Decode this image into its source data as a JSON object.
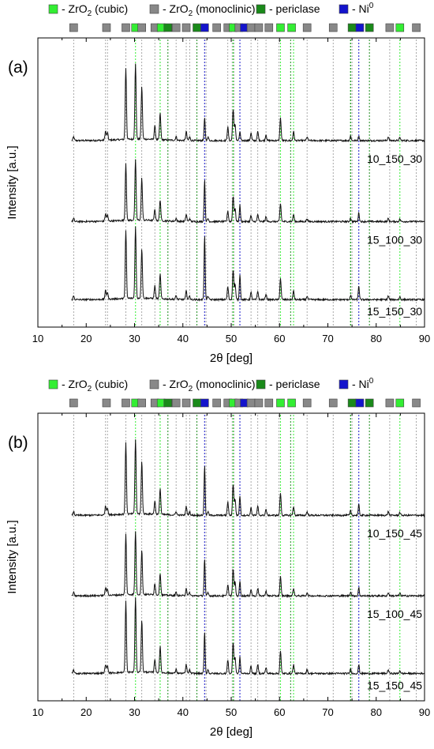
{
  "chart_data": [
    {
      "type": "line",
      "panel_label": "(a)",
      "legend": [
        {
          "text": "- ZrO",
          "sub": "2",
          "after": " (cubic)",
          "color": "#33ee33"
        },
        {
          "text": "- ZrO",
          "sub": "2",
          "after": " (monoclinic)",
          "color": "#888888"
        },
        {
          "text": "- periclase",
          "sub": "",
          "after": "",
          "color": "#1a8a1a"
        },
        {
          "text": "- Ni",
          "sup": "0",
          "after": "",
          "color": "#1414cc"
        }
      ],
      "xlabel": "2θ [deg]",
      "ylabel": "Intensity [a.u.]",
      "xlim": [
        10,
        90
      ],
      "xticks": [
        10,
        20,
        30,
        40,
        50,
        60,
        70,
        80,
        90
      ],
      "series": [
        {
          "name": "10_150_30",
          "peak_scale": 1.0,
          "ni_scale": 0.55
        },
        {
          "name": "15_100_30",
          "peak_scale": 0.8,
          "ni_scale": 1.0
        },
        {
          "name": "15_150_30",
          "peak_scale": 0.95,
          "ni_scale": 1.55
        }
      ]
    },
    {
      "type": "line",
      "panel_label": "(b)",
      "legend": [
        {
          "text": "- ZrO",
          "sub": "2",
          "after": " (cubic)",
          "color": "#33ee33"
        },
        {
          "text": "- ZrO",
          "sub": "2",
          "after": " (monoclinic)",
          "color": "#888888"
        },
        {
          "text": "- periclase",
          "sub": "",
          "after": "",
          "color": "#1a8a1a"
        },
        {
          "text": "- Ni",
          "sup": "0",
          "after": "",
          "color": "#1414cc"
        }
      ],
      "xlabel": "2θ [deg]",
      "ylabel": "Intensity [a.u.]",
      "xlim": [
        10,
        90
      ],
      "xticks": [
        10,
        20,
        30,
        40,
        50,
        60,
        70,
        80,
        90
      ],
      "series": [
        {
          "name": "10_150_45",
          "peak_scale": 1.0,
          "ni_scale": 1.2
        },
        {
          "name": "15_100_45",
          "peak_scale": 0.85,
          "ni_scale": 0.9
        },
        {
          "name": "15_150_45",
          "peak_scale": 1.0,
          "ni_scale": 1.0
        }
      ]
    }
  ],
  "reference_lines": {
    "monoclinic": [
      17.4,
      24.0,
      24.4,
      28.2,
      31.5,
      34.2,
      35.3,
      38.6,
      40.7,
      41.4,
      44.8,
      49.3,
      50.2,
      50.6,
      54.1,
      55.5,
      57.2,
      59.9,
      65.7,
      71.1,
      75.0,
      82.8,
      88.3
    ],
    "cubic": [
      30.2,
      35.3,
      50.4,
      60.2,
      62.9,
      74.7,
      84.9
    ],
    "periclase": [
      36.9,
      42.9,
      62.3,
      74.7,
      78.6
    ],
    "ni": [
      44.5,
      51.8,
      76.4
    ]
  },
  "marker_boxes": [
    {
      "x": 17.4,
      "phase": "monoclinic"
    },
    {
      "x": 24.2,
      "phase": "monoclinic"
    },
    {
      "x": 28.2,
      "phase": "monoclinic"
    },
    {
      "x": 30.2,
      "phase": "cubic"
    },
    {
      "x": 31.5,
      "phase": "monoclinic"
    },
    {
      "x": 34.2,
      "phase": "monoclinic"
    },
    {
      "x": 35.5,
      "phase": "cubic"
    },
    {
      "x": 36.9,
      "phase": "periclase"
    },
    {
      "x": 38.6,
      "phase": "monoclinic"
    },
    {
      "x": 40.7,
      "phase": "monoclinic"
    },
    {
      "x": 42.9,
      "phase": "periclase"
    },
    {
      "x": 44.5,
      "phase": "ni"
    },
    {
      "x": 47.0,
      "phase": "monoclinic"
    },
    {
      "x": 49.3,
      "phase": "monoclinic"
    },
    {
      "x": 50.4,
      "phase": "cubic"
    },
    {
      "x": 51.6,
      "phase": "monoclinic"
    },
    {
      "x": 52.7,
      "phase": "ni"
    },
    {
      "x": 54.1,
      "phase": "monoclinic"
    },
    {
      "x": 55.7,
      "phase": "monoclinic"
    },
    {
      "x": 57.8,
      "phase": "monoclinic"
    },
    {
      "x": 60.2,
      "phase": "cubic"
    },
    {
      "x": 62.5,
      "phase": "cubic"
    },
    {
      "x": 65.7,
      "phase": "monoclinic"
    },
    {
      "x": 71.1,
      "phase": "monoclinic"
    },
    {
      "x": 75.0,
      "phase": "periclase"
    },
    {
      "x": 76.6,
      "phase": "ni"
    },
    {
      "x": 78.6,
      "phase": "periclase"
    },
    {
      "x": 82.8,
      "phase": "monoclinic"
    },
    {
      "x": 84.9,
      "phase": "cubic"
    },
    {
      "x": 88.3,
      "phase": "monoclinic"
    }
  ],
  "phase_colors": {
    "cubic": "#33ee33",
    "monoclinic": "#888888",
    "periclase": "#1a8a1a",
    "ni": "#1414cc"
  },
  "peaks": [
    {
      "x": 17.4,
      "h": 0.05
    },
    {
      "x": 24.0,
      "h": 0.12
    },
    {
      "x": 24.4,
      "h": 0.1
    },
    {
      "x": 28.2,
      "h": 0.95
    },
    {
      "x": 30.2,
      "h": 1.0
    },
    {
      "x": 31.5,
      "h": 0.7
    },
    {
      "x": 34.2,
      "h": 0.18
    },
    {
      "x": 35.3,
      "h": 0.35
    },
    {
      "x": 38.6,
      "h": 0.05
    },
    {
      "x": 40.7,
      "h": 0.12
    },
    {
      "x": 41.4,
      "h": 0.05
    },
    {
      "x": 45.2,
      "h": 0.05
    },
    {
      "x": 49.3,
      "h": 0.18
    },
    {
      "x": 50.4,
      "h": 0.42
    },
    {
      "x": 50.8,
      "h": 0.22
    },
    {
      "x": 54.1,
      "h": 0.1
    },
    {
      "x": 55.5,
      "h": 0.12
    },
    {
      "x": 57.2,
      "h": 0.08
    },
    {
      "x": 60.2,
      "h": 0.3
    },
    {
      "x": 62.9,
      "h": 0.12
    },
    {
      "x": 65.7,
      "h": 0.05
    },
    {
      "x": 74.7,
      "h": 0.06
    },
    {
      "x": 82.5,
      "h": 0.05
    },
    {
      "x": 84.9,
      "h": 0.04
    }
  ],
  "ni_peaks": [
    {
      "x": 44.5,
      "h": 0.55
    },
    {
      "x": 51.8,
      "h": 0.22
    },
    {
      "x": 76.4,
      "h": 0.12
    }
  ]
}
